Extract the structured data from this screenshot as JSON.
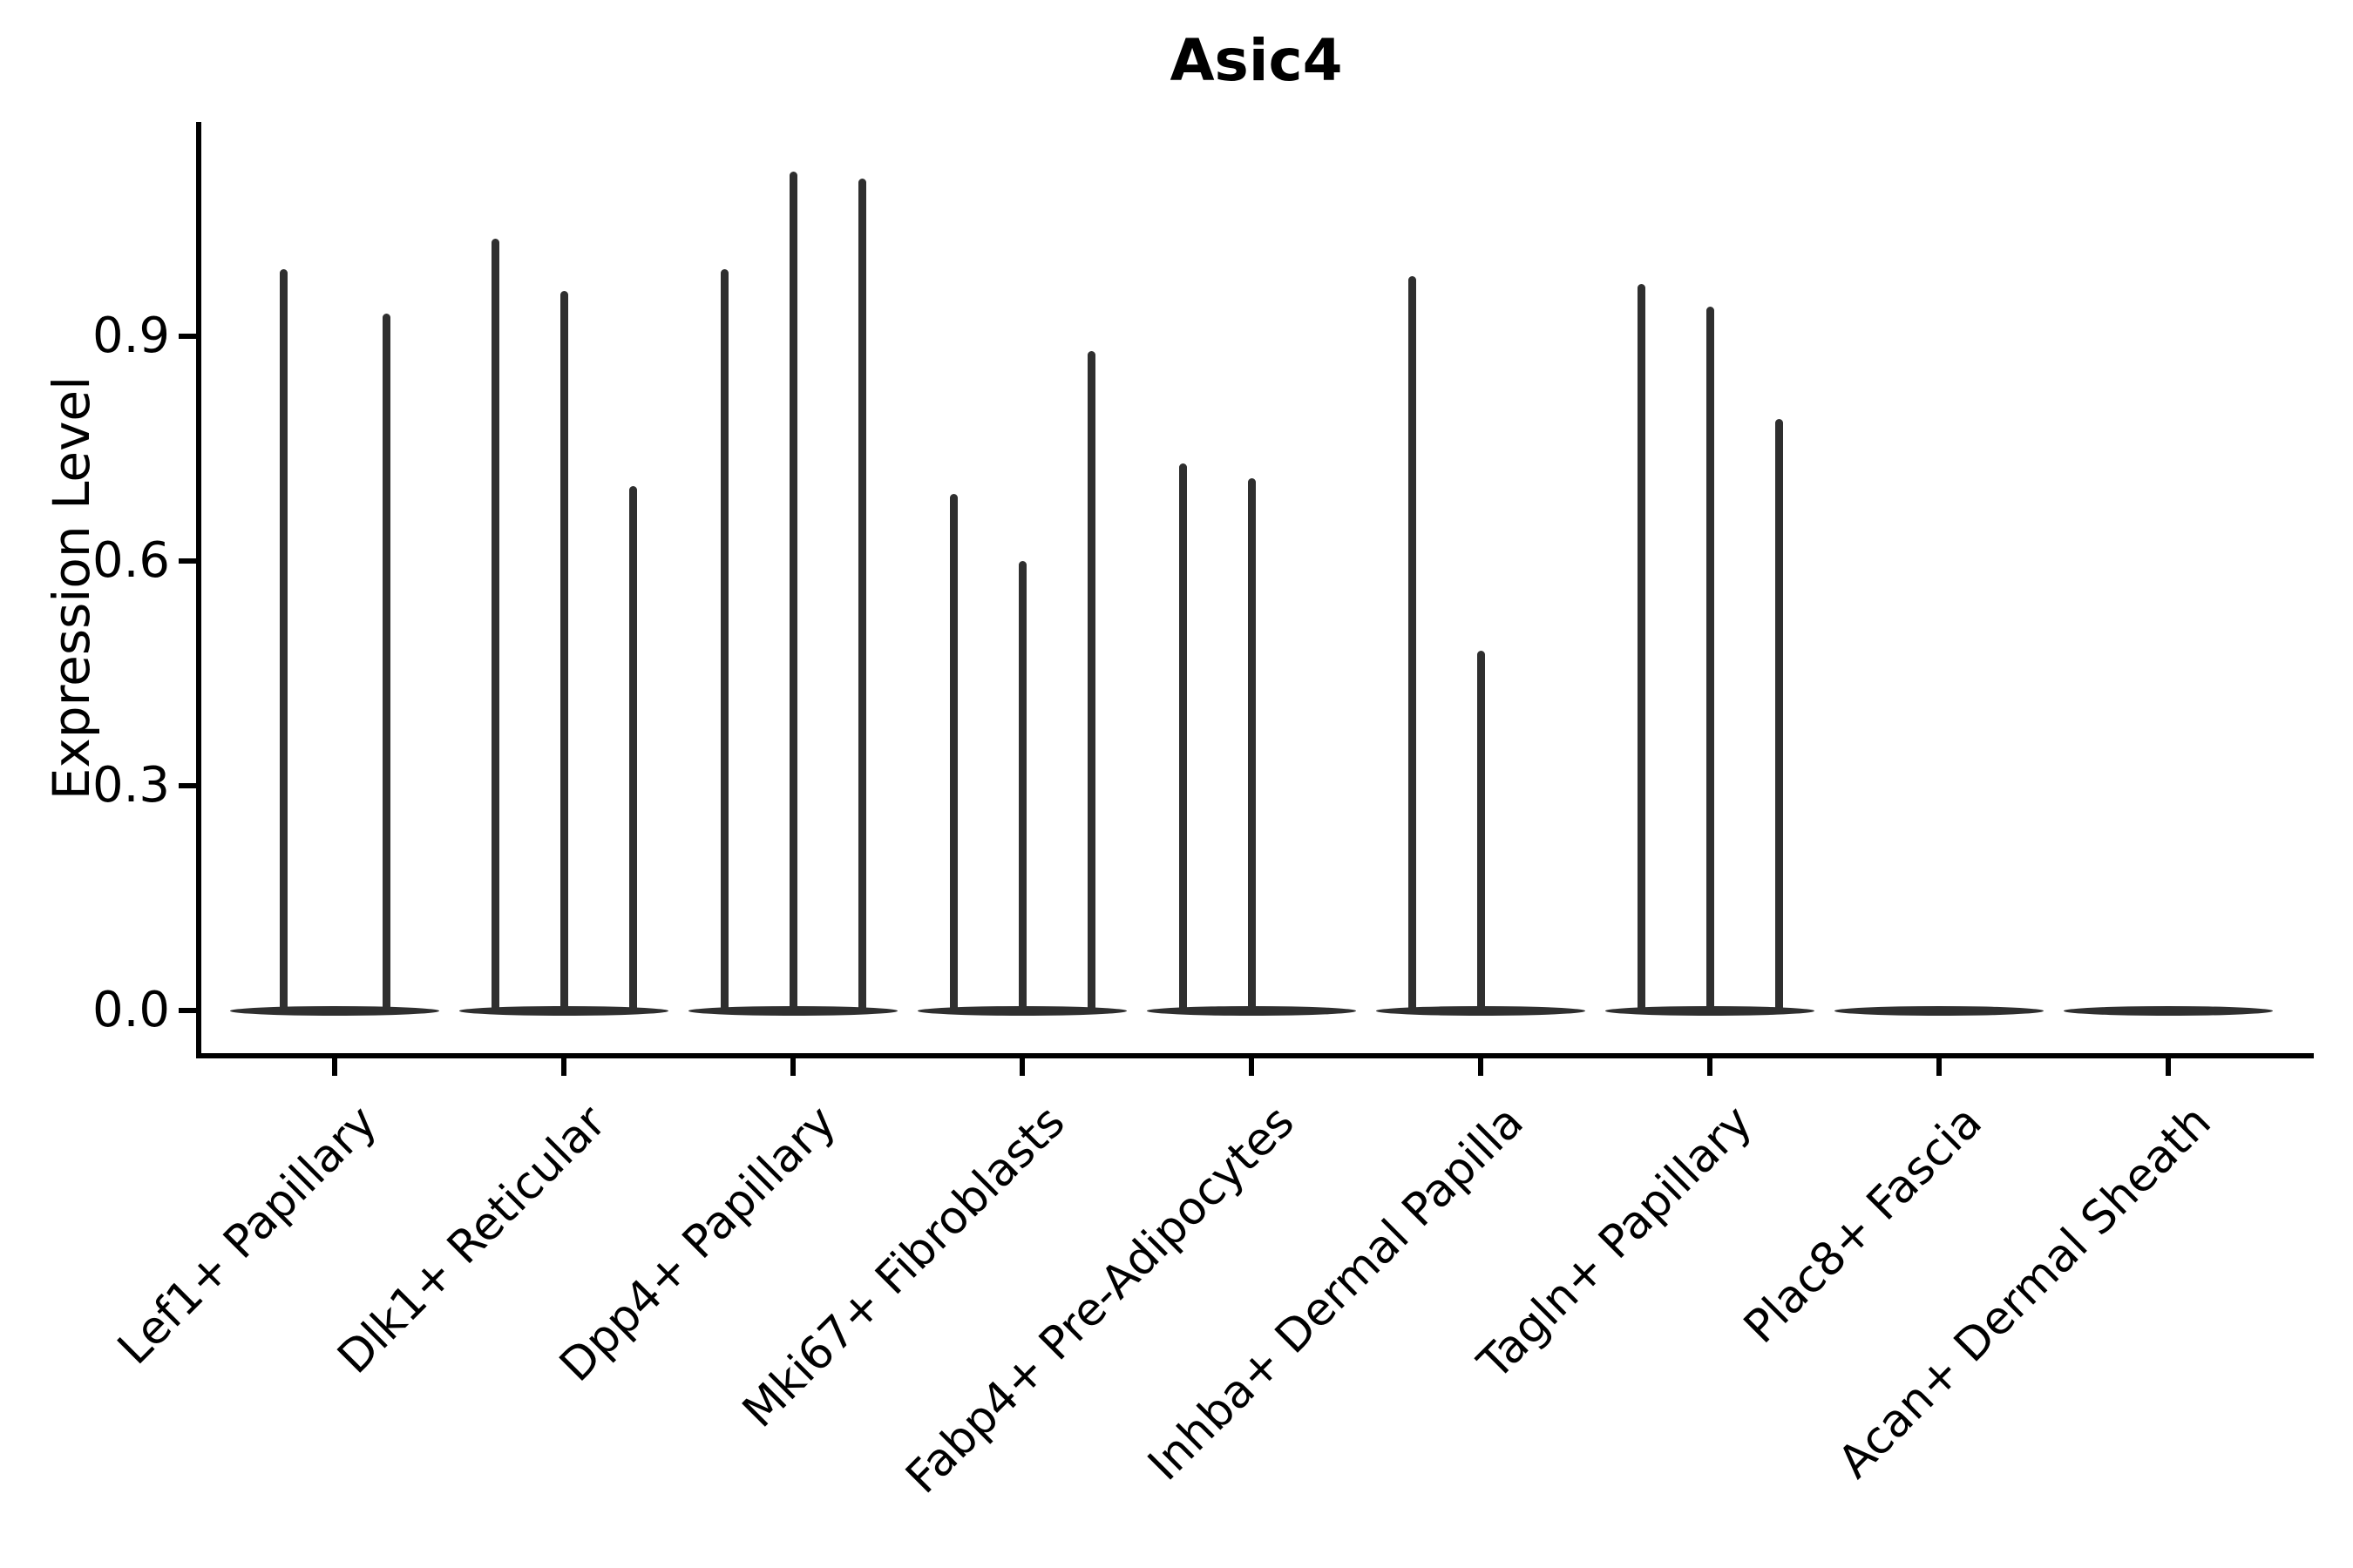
{
  "page": {
    "background": "#ffffff"
  },
  "chart_data": {
    "type": "violin",
    "title": "Asic4",
    "ylabel": "Expression Level",
    "xlabel": "",
    "grid": false,
    "legend_position": "none",
    "stroke_color": "#2f2f2f",
    "axis_color": "#000000",
    "ylim": [
      0.0,
      1.19
    ],
    "yticks": [
      {
        "label": "0.0",
        "value": 0.0
      },
      {
        "label": "0.3",
        "value": 0.3
      },
      {
        "label": "0.6",
        "value": 0.6
      },
      {
        "label": "0.9",
        "value": 0.9
      }
    ],
    "categories": [
      "Lef1+ Papillary",
      "Dlk1+ Reticular",
      "Dpp4+ Papillary",
      "Mki67+ Fibroblasts",
      "Fabp4+ Pre-Adipocytes",
      "Inhba+ Dermal Papilla",
      "Tagln+ Papillary",
      "Plac8+ Fascia",
      "Acan+ Dermal Sheath"
    ],
    "series": [
      {
        "category": "Lef1+ Papillary",
        "zero_baseline": true,
        "violins": [
          {
            "dx": -59,
            "max": 0.99
          },
          {
            "dx": 59,
            "max": 0.93
          }
        ]
      },
      {
        "category": "Dlk1+ Reticular",
        "zero_baseline": true,
        "violins": [
          {
            "dx": -79,
            "max": 1.03
          },
          {
            "dx": 0,
            "max": 0.96
          },
          {
            "dx": 79,
            "max": 0.7
          }
        ]
      },
      {
        "category": "Dpp4+ Papillary",
        "zero_baseline": true,
        "violins": [
          {
            "dx": -79,
            "max": 0.99
          },
          {
            "dx": 0,
            "max": 1.12
          },
          {
            "dx": 79,
            "max": 1.11
          }
        ]
      },
      {
        "category": "Mki67+ Fibroblasts",
        "zero_baseline": true,
        "violins": [
          {
            "dx": -79,
            "max": 0.69
          },
          {
            "dx": 0,
            "max": 0.6
          },
          {
            "dx": 79,
            "max": 0.88
          }
        ]
      },
      {
        "category": "Fabp4+ Pre-Adipocytes",
        "zero_baseline": true,
        "violins": [
          {
            "dx": -79,
            "max": 0.73
          },
          {
            "dx": 0,
            "max": 0.71
          }
        ]
      },
      {
        "category": "Inhba+ Dermal Papilla",
        "zero_baseline": true,
        "violins": [
          {
            "dx": -79,
            "max": 0.98
          },
          {
            "dx": 0,
            "max": 0.48
          }
        ]
      },
      {
        "category": "Tagln+ Papillary",
        "zero_baseline": true,
        "violins": [
          {
            "dx": -79,
            "max": 0.97
          },
          {
            "dx": 0,
            "max": 0.94
          },
          {
            "dx": 79,
            "max": 0.79
          }
        ]
      },
      {
        "category": "Plac8+ Fascia",
        "zero_baseline": true,
        "violins": []
      },
      {
        "category": "Acan+ Dermal Sheath",
        "zero_baseline": true,
        "violins": []
      }
    ]
  }
}
